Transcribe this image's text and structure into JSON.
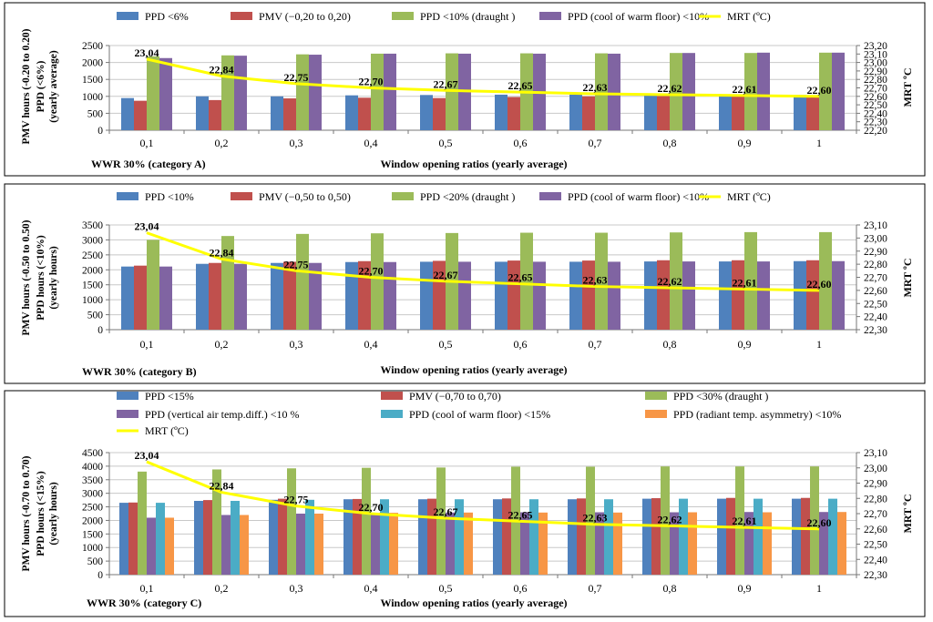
{
  "chart_data": [
    {
      "type": "bar",
      "panel": "A",
      "title": "",
      "category_label": "WWR 30% (category A)",
      "xlabel": "Window opening ratios (yearly average)",
      "ylabel": [
        "PMV hours (-0.20 to 0.20)",
        "PPD (<6%)",
        "(yearly average)"
      ],
      "y2label": "MRT ºC",
      "categories": [
        "0,1",
        "0,2",
        "0,3",
        "0,4",
        "0,5",
        "0,6",
        "0,7",
        "0,8",
        "0,9",
        "1"
      ],
      "ylim": [
        0,
        2500
      ],
      "yticks": [
        "0",
        "500",
        "1000",
        "1500",
        "2000",
        "2500"
      ],
      "y2lim": [
        22.2,
        23.2
      ],
      "y2ticks": [
        "22,20",
        "22,30",
        "22,40",
        "22,50",
        "22,60",
        "22,70",
        "22,80",
        "22,90",
        "23,00",
        "23,10",
        "23,20"
      ],
      "series": [
        {
          "name": "PPD <6%",
          "color": "#4f81bd",
          "values": [
            950,
            1000,
            1000,
            1030,
            1040,
            1050,
            1050,
            1040,
            1040,
            1040
          ]
        },
        {
          "name": "PMV (−0,20 to 0,20)",
          "color": "#c0504d",
          "values": [
            870,
            890,
            940,
            960,
            950,
            980,
            1000,
            1010,
            1010,
            1010
          ]
        },
        {
          "name": "PPD <10% (draught )",
          "color": "#9bbb59",
          "values": [
            2180,
            2210,
            2240,
            2260,
            2270,
            2270,
            2270,
            2280,
            2280,
            2290
          ]
        },
        {
          "name": "PPD (cool of warm floor) <10%",
          "color": "#8064a2",
          "values": [
            2130,
            2200,
            2230,
            2260,
            2260,
            2260,
            2260,
            2280,
            2290,
            2290
          ]
        }
      ],
      "line": {
        "name": "MRT (ºC)",
        "color": "#ffff00",
        "values": [
          23.04,
          22.84,
          22.75,
          22.7,
          22.67,
          22.65,
          22.63,
          22.62,
          22.61,
          22.6
        ],
        "labels": [
          "23,04",
          "22,84",
          "22,75",
          "22,70",
          "22,67",
          "22,65",
          "22,63",
          "22,62",
          "22,61",
          "22,60"
        ]
      }
    },
    {
      "type": "bar",
      "panel": "B",
      "title": "",
      "category_label": "WWR 30% (category B)",
      "xlabel": "Window opening ratios (yearly average)",
      "ylabel": [
        "PMV hours (-0.50 to 0.50)",
        "PPD hours (<10%)",
        "(yearly hours)"
      ],
      "y2label": "MRT ºC",
      "categories": [
        "0,1",
        "0,2",
        "0,3",
        "0,4",
        "0,5",
        "0,6",
        "0,7",
        "0,8",
        "0,9",
        "1"
      ],
      "ylim": [
        0,
        3500
      ],
      "yticks": [
        "0",
        "500",
        "1000",
        "1500",
        "2000",
        "2500",
        "3000",
        "3500"
      ],
      "y2lim": [
        22.3,
        23.1
      ],
      "y2ticks": [
        "22,30",
        "22,40",
        "22,50",
        "22,60",
        "22,70",
        "22,80",
        "22,90",
        "23,00",
        "23,10"
      ],
      "series": [
        {
          "name": "PPD <10%",
          "color": "#4f81bd",
          "values": [
            2110,
            2200,
            2230,
            2260,
            2270,
            2270,
            2270,
            2280,
            2280,
            2290
          ]
        },
        {
          "name": "PMV (−0,50 to 0,50)",
          "color": "#c0504d",
          "values": [
            2140,
            2230,
            2270,
            2290,
            2300,
            2310,
            2310,
            2320,
            2320,
            2320
          ]
        },
        {
          "name": "PPD <20% (draught )",
          "color": "#9bbb59",
          "values": [
            3000,
            3130,
            3200,
            3220,
            3230,
            3240,
            3240,
            3250,
            3260,
            3260
          ]
        },
        {
          "name": "PPD (cool of warm floor) <10%",
          "color": "#8064a2",
          "values": [
            2110,
            2200,
            2230,
            2260,
            2270,
            2270,
            2270,
            2280,
            2280,
            2290
          ]
        }
      ],
      "line": {
        "name": "MRT (ºC)",
        "color": "#ffff00",
        "values": [
          23.04,
          22.84,
          22.75,
          22.7,
          22.67,
          22.65,
          22.63,
          22.62,
          22.61,
          22.6
        ],
        "labels": [
          "23,04",
          "22,84",
          "22,75",
          "22,70",
          "22,67",
          "22,65",
          "22,63",
          "22,62",
          "22,61",
          "22,60"
        ]
      }
    },
    {
      "type": "bar",
      "panel": "C",
      "title": "",
      "category_label": "WWR 30% (category C)",
      "xlabel": "Window opening ratios (yearly average)",
      "ylabel": [
        "PMV hours (-0.70 to 0.70)",
        "PPD hours (<15%)",
        "(yearly hours)"
      ],
      "y2label": "MRT ºC",
      "categories": [
        "0,1",
        "0,2",
        "0,3",
        "0,4",
        "0,5",
        "0,6",
        "0,7",
        "0,8",
        "0,9",
        "1"
      ],
      "ylim": [
        0,
        4500
      ],
      "yticks": [
        "0",
        "500",
        "1000",
        "1500",
        "2000",
        "2500",
        "3000",
        "3500",
        "4000",
        "4500"
      ],
      "y2lim": [
        22.3,
        23.1
      ],
      "y2ticks": [
        "22,30",
        "22,40",
        "22,50",
        "22,60",
        "22,70",
        "22,80",
        "22,90",
        "23,00",
        "23,10"
      ],
      "series": [
        {
          "name": "PPD <15%",
          "color": "#4f81bd",
          "values": [
            2650,
            2720,
            2760,
            2780,
            2780,
            2780,
            2780,
            2800,
            2800,
            2800
          ]
        },
        {
          "name": "PMV (−0,70 to 0,70)",
          "color": "#c0504d",
          "values": [
            2660,
            2750,
            2800,
            2790,
            2800,
            2810,
            2810,
            2820,
            2830,
            2830
          ]
        },
        {
          "name": "PPD <30% (draught )",
          "color": "#9bbb59",
          "values": [
            3800,
            3880,
            3920,
            3940,
            3950,
            3980,
            3980,
            3990,
            3990,
            3990
          ]
        },
        {
          "name": "PPD (vertical air temp.diff.) <10 %",
          "color": "#8064a2",
          "values": [
            2100,
            2200,
            2250,
            2280,
            2290,
            2300,
            2300,
            2300,
            2310,
            2310
          ]
        },
        {
          "name": "PPD (cool of warm floor) <15%",
          "color": "#4bacc6",
          "values": [
            2650,
            2720,
            2760,
            2780,
            2780,
            2780,
            2780,
            2800,
            2800,
            2800
          ]
        },
        {
          "name": "PPD (radiant temp. asymmetry) <10%",
          "color": "#f79646",
          "values": [
            2100,
            2200,
            2250,
            2280,
            2290,
            2290,
            2290,
            2300,
            2300,
            2310
          ]
        }
      ],
      "line": {
        "name": "MRT (ºC)",
        "color": "#ffff00",
        "values": [
          23.04,
          22.84,
          22.75,
          22.7,
          22.67,
          22.65,
          22.63,
          22.62,
          22.61,
          22.6
        ],
        "labels": [
          "23,04",
          "22,84",
          "22,75",
          "22,70",
          "22,67",
          "22,65",
          "22,63",
          "22,62",
          "22,61",
          "22,60"
        ]
      }
    }
  ]
}
